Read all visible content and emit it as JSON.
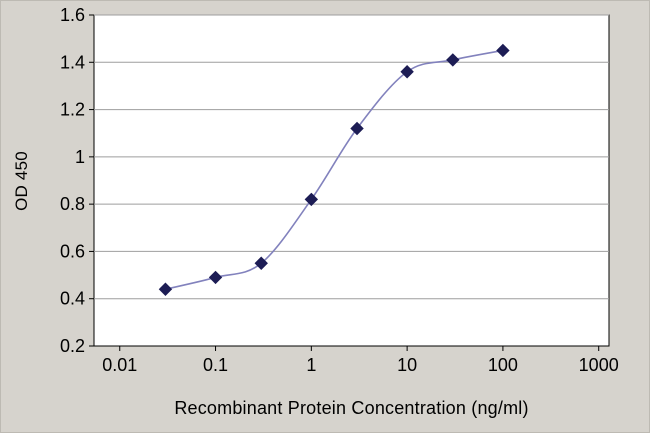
{
  "chart_data": {
    "type": "line",
    "title": "",
    "xlabel": "Recombinant Protein Concentration (ng/ml)",
    "ylabel": "OD 450",
    "x_scale": "log",
    "xlim_ticks": [
      0.01,
      1000
    ],
    "x_ticks": [
      0.01,
      0.1,
      1,
      10,
      100,
      1000
    ],
    "x_tick_labels": [
      "0.01",
      "0.1",
      "1",
      "10",
      "100",
      "1000"
    ],
    "y_ticks": [
      0.2,
      0.4,
      0.6,
      0.8,
      1,
      1.2,
      1.4,
      1.6
    ],
    "y_tick_labels": [
      "0.2",
      "0.4",
      "0.6",
      "0.8",
      "1",
      "1.2",
      "1.4",
      "1.6"
    ],
    "ylim": [
      0.2,
      1.6
    ],
    "grid": "horizontal",
    "legend": "none",
    "series": [
      {
        "name": "OD 450",
        "x": [
          0.03,
          0.1,
          0.3,
          1,
          3,
          10,
          30,
          100
        ],
        "y": [
          0.44,
          0.49,
          0.55,
          0.82,
          1.12,
          1.36,
          1.41,
          1.45
        ],
        "marker": "diamond",
        "line_color": "#8282bd",
        "marker_color": "#1d1d55"
      }
    ],
    "colors": {
      "background": "#d6d3cd",
      "plot_background": "#ffffff",
      "grid": "#9e9e9e",
      "axis": "#000000",
      "text": "#000000"
    }
  }
}
